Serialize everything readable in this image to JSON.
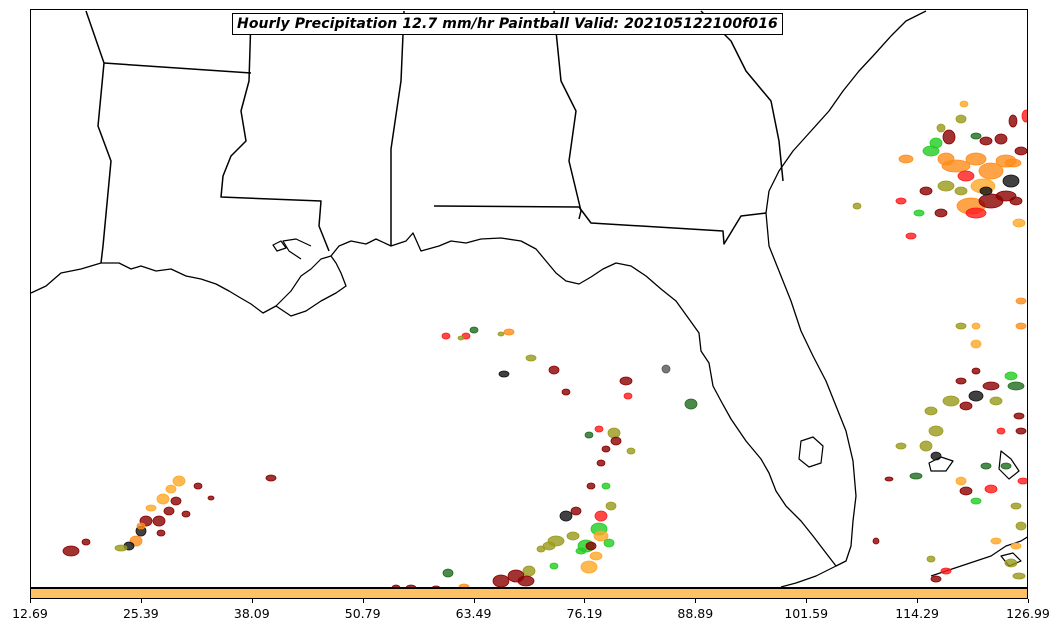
{
  "title": "Hourly Precipitation 12.7 mm/hr Paintball Valid: 202105122100f016",
  "colorbar": {
    "color": "#fec163",
    "tick_labels": [
      "12.69",
      "25.39",
      "38.09",
      "50.79",
      "63.49",
      "76.19",
      "88.89",
      "101.59",
      "114.29",
      "126.99"
    ]
  },
  "map": {
    "region": "Gulf of Mexico / southeastern United States",
    "features": [
      "coastline",
      "state-borders"
    ]
  },
  "colors": {
    "dark-red": "#8b0000",
    "red": "#ff1a1a",
    "orange": "#ff8c1a",
    "light-orange": "#ffa726",
    "bright-green": "#22cc22",
    "olive": "#9a9a1a",
    "dark-green": "#1f6b1f",
    "black": "#111111",
    "gray": "#555555"
  }
}
